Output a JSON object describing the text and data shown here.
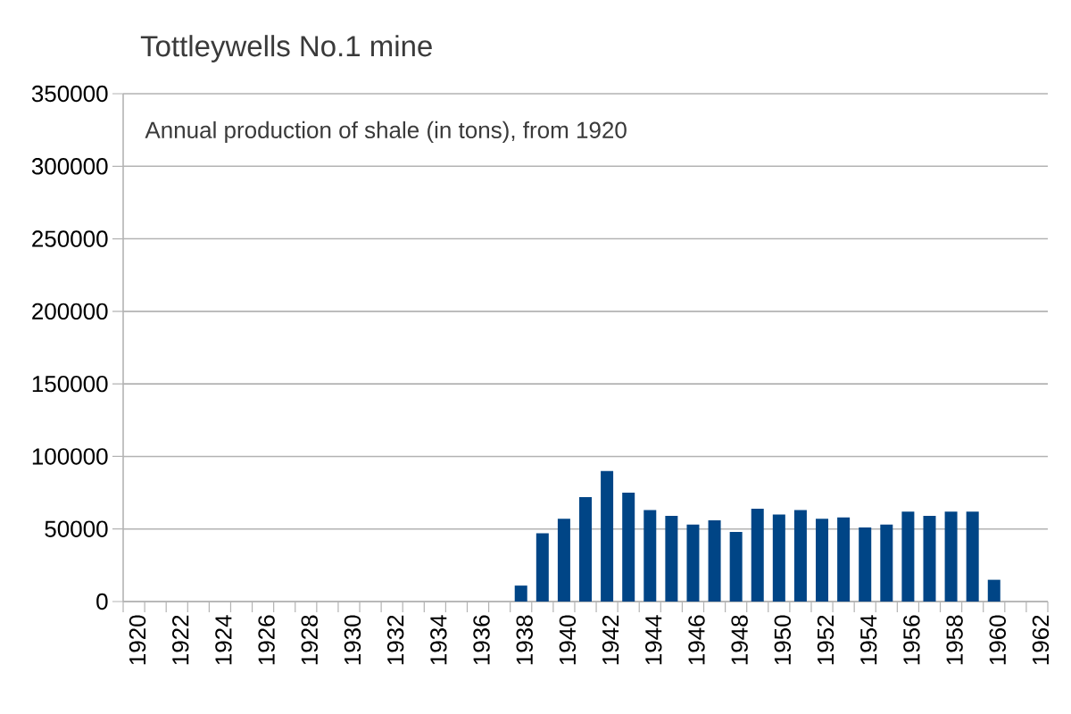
{
  "chart_data": {
    "type": "bar",
    "title": "Tottleywells No.1 mine",
    "subtitle": "Annual production of shale (in tons), from 1920",
    "categories": [
      "1920",
      null,
      "1922",
      null,
      "1924",
      null,
      "1926",
      null,
      "1928",
      null,
      "1930",
      null,
      "1932",
      null,
      "1934",
      null,
      "1936",
      null,
      "1938",
      null,
      "1940",
      null,
      "1942",
      null,
      "1944",
      null,
      "1946",
      null,
      "1948",
      null,
      "1950",
      null,
      "1952",
      null,
      "1954",
      null,
      "1956",
      null,
      "1958",
      null,
      "1960",
      null,
      "1962"
    ],
    "values": [
      null,
      null,
      null,
      null,
      null,
      null,
      null,
      null,
      null,
      null,
      null,
      null,
      null,
      null,
      null,
      null,
      null,
      null,
      11000,
      47000,
      57000,
      72000,
      90000,
      75000,
      63000,
      59000,
      53000,
      56000,
      48000,
      64000,
      60000,
      63000,
      57000,
      58000,
      51000,
      53000,
      62000,
      59000,
      62000,
      62000,
      15000,
      null,
      null
    ],
    "color": "#004586",
    "ylim": [
      0,
      350000
    ],
    "yticks": [
      0,
      50000,
      100000,
      150000,
      200000,
      250000,
      300000,
      350000
    ],
    "grid": "y"
  }
}
